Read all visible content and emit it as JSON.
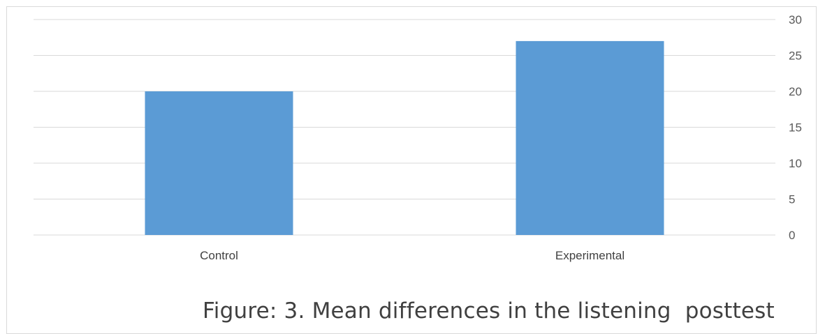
{
  "caption": "Figure: 3. Mean differences in the listening  posttest",
  "chart_data": {
    "type": "bar",
    "categories": [
      "Control",
      "Experimental"
    ],
    "series": [
      {
        "values": [
          20,
          27
        ]
      }
    ],
    "title": "",
    "xlabel": "",
    "ylabel": "",
    "ylim": [
      0,
      30
    ],
    "yticks": [
      0,
      5,
      10,
      15,
      20,
      25,
      30
    ],
    "y_axis_side": "right",
    "grid": true,
    "legend": "none",
    "bar_color": "#5b9bd5",
    "grid_color": "#d9d9d9"
  }
}
